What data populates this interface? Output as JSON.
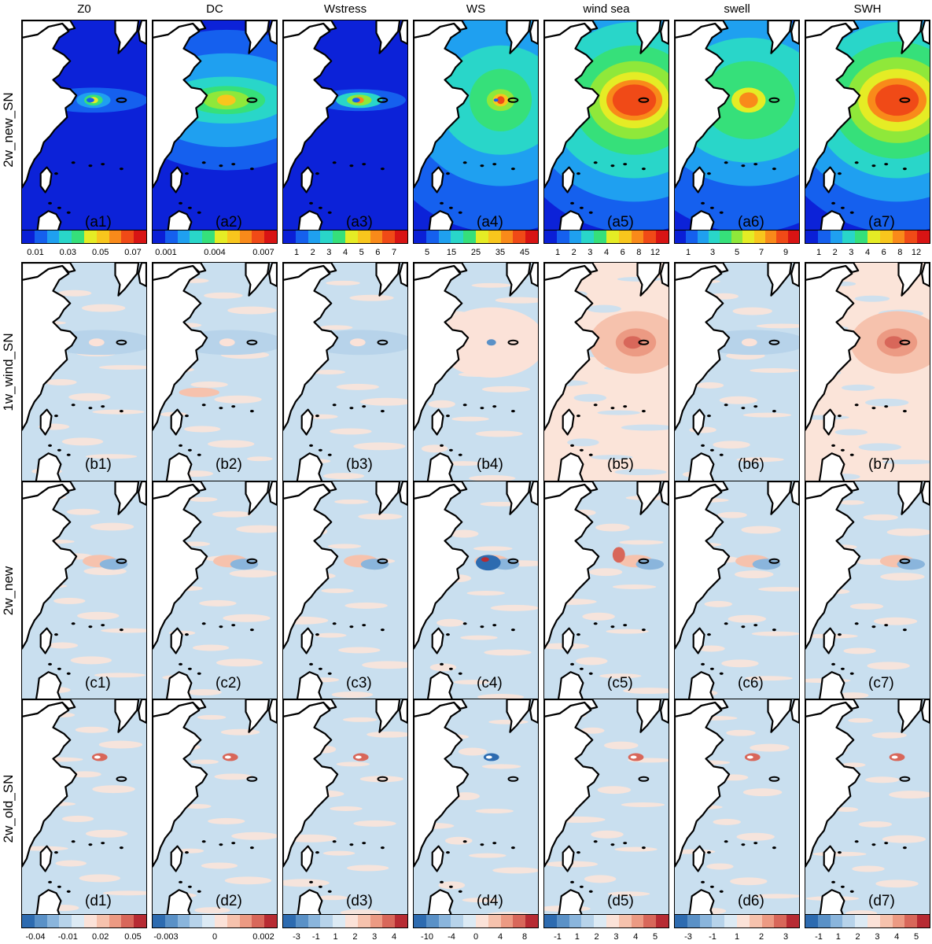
{
  "columns": [
    "Z0",
    "DC",
    "Wstress",
    "WS",
    "wind sea",
    "swell",
    "SWH"
  ],
  "rows": [
    {
      "label": "2w_new_SN",
      "panels": [
        "(a1)",
        "(a2)",
        "(a3)",
        "(a4)",
        "(a5)",
        "(a6)",
        "(a7)"
      ]
    },
    {
      "label": "1w_wind_SN",
      "panels": [
        "(b1)",
        "(b2)",
        "(b3)",
        "(b4)",
        "(b5)",
        "(b6)",
        "(b7)"
      ]
    },
    {
      "label": "2w_new",
      "panels": [
        "(c1)",
        "(c2)",
        "(c3)",
        "(c4)",
        "(c5)",
        "(c6)",
        "(c7)"
      ]
    },
    {
      "label": "2w_old_SN",
      "panels": [
        "(d1)",
        "(d2)",
        "(d3)",
        "(d4)",
        "(d5)",
        "(d6)",
        "(d7)"
      ]
    }
  ],
  "colorbars_top": [
    {
      "ticks": [
        "0.01",
        "0.03",
        "0.05",
        "0.07"
      ],
      "segments": 10
    },
    {
      "ticks": [
        "0.001",
        "0.004",
        "0.007"
      ],
      "segments": 10
    },
    {
      "ticks": [
        "1",
        "2",
        "3",
        "4",
        "5",
        "6",
        "7"
      ],
      "segments": 10
    },
    {
      "ticks": [
        "5",
        "15",
        "25",
        "35",
        "45"
      ],
      "segments": 10
    },
    {
      "ticks": [
        "1",
        "2",
        "3",
        "4",
        "6",
        "8",
        "12"
      ],
      "segments": 10
    },
    {
      "ticks": [
        "1",
        "3",
        "5",
        "7",
        "9"
      ],
      "segments": 11
    },
    {
      "ticks": [
        "1",
        "2",
        "3",
        "4",
        "6",
        "8",
        "12"
      ],
      "segments": 10
    }
  ],
  "colorbars_bottom": [
    {
      "ticks": [
        "-0.04",
        "-0.01",
        "0.02",
        "0.05"
      ]
    },
    {
      "ticks": [
        "-0.003",
        "0",
        "0.002"
      ]
    },
    {
      "ticks": [
        "-3",
        "-1",
        "1",
        "2",
        "3",
        "4"
      ]
    },
    {
      "ticks": [
        "-10",
        "-4",
        "0",
        "4",
        "8"
      ]
    },
    {
      "ticks": [
        "-1",
        "1",
        "2",
        "3",
        "4",
        "5"
      ]
    },
    {
      "ticks": [
        "-3",
        "-1",
        "1",
        "2",
        "3"
      ]
    },
    {
      "ticks": [
        "-1",
        "1",
        "2",
        "3",
        "4",
        "5"
      ]
    }
  ],
  "colors": {
    "rainbow": [
      "#0a1fd6",
      "#1560ee",
      "#1fa0f0",
      "#29d6c9",
      "#36e07a",
      "#8fe83a",
      "#e5ec25",
      "#f8c61d",
      "#f98a1a",
      "#f04a17",
      "#d81414"
    ],
    "diverging": [
      "#2d6bb0",
      "#5a91c7",
      "#8ab5dc",
      "#b7d3ea",
      "#dceaf4",
      "#fbe2d8",
      "#f6c2ad",
      "#ec9a83",
      "#d8675a",
      "#b72b33"
    ],
    "ocean_base_top": "#0c22d8",
    "ocean_diff_blue": "#c9dfef",
    "ocean_diff_pink": "#fbe4d9",
    "land": "#ffffff",
    "coast": "#000000"
  }
}
